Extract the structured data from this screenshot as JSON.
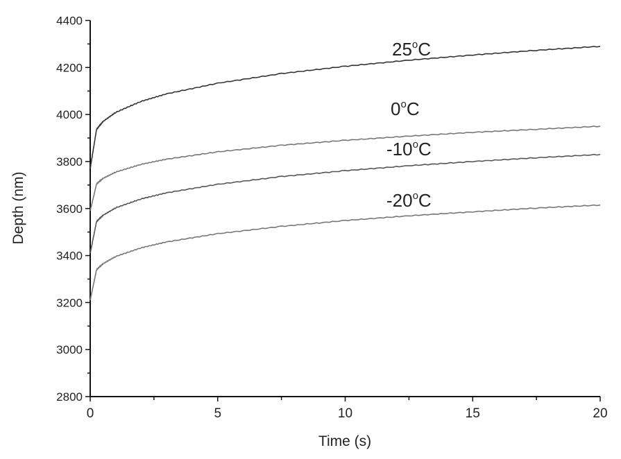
{
  "chart_data": {
    "type": "line",
    "title": "",
    "xlabel": "Time (s)",
    "ylabel": "Depth (nm)",
    "xlim": [
      0,
      20
    ],
    "ylim": [
      2800,
      4400
    ],
    "xticks": [
      0,
      5,
      10,
      15,
      20
    ],
    "yticks": [
      2800,
      3000,
      3200,
      3400,
      3600,
      3800,
      4000,
      4200,
      4400
    ],
    "grid": false,
    "x": [
      0,
      0.25,
      0.5,
      1,
      2,
      3,
      5,
      7.5,
      10,
      12.5,
      15,
      17.5,
      20
    ],
    "series": [
      {
        "name": "25°C",
        "color": "#333333",
        "label_base": "25",
        "values": [
          3770,
          3937,
          3970,
          4009,
          4056,
          4088,
          4133,
          4174,
          4205,
          4231,
          4253,
          4273,
          4290
        ]
      },
      {
        "name": "0°C",
        "color": "#777777",
        "label_base": "0",
        "values": [
          3590,
          3705,
          3728,
          3755,
          3788,
          3810,
          3841,
          3869,
          3890,
          3908,
          3924,
          3937,
          3950
        ]
      },
      {
        "name": "-10°C",
        "color": "#555555",
        "label_base": "-10",
        "values": [
          3410,
          3545,
          3571,
          3603,
          3641,
          3667,
          3703,
          3736,
          3761,
          3782,
          3800,
          3816,
          3830
        ]
      },
      {
        "name": "-20°C",
        "color": "#777777",
        "label_base": "-20",
        "values": [
          3210,
          3340,
          3365,
          3396,
          3433,
          3458,
          3493,
          3524,
          3549,
          3569,
          3586,
          3602,
          3615
        ]
      }
    ],
    "degree_symbol": "o",
    "unit_suffix": "C"
  }
}
